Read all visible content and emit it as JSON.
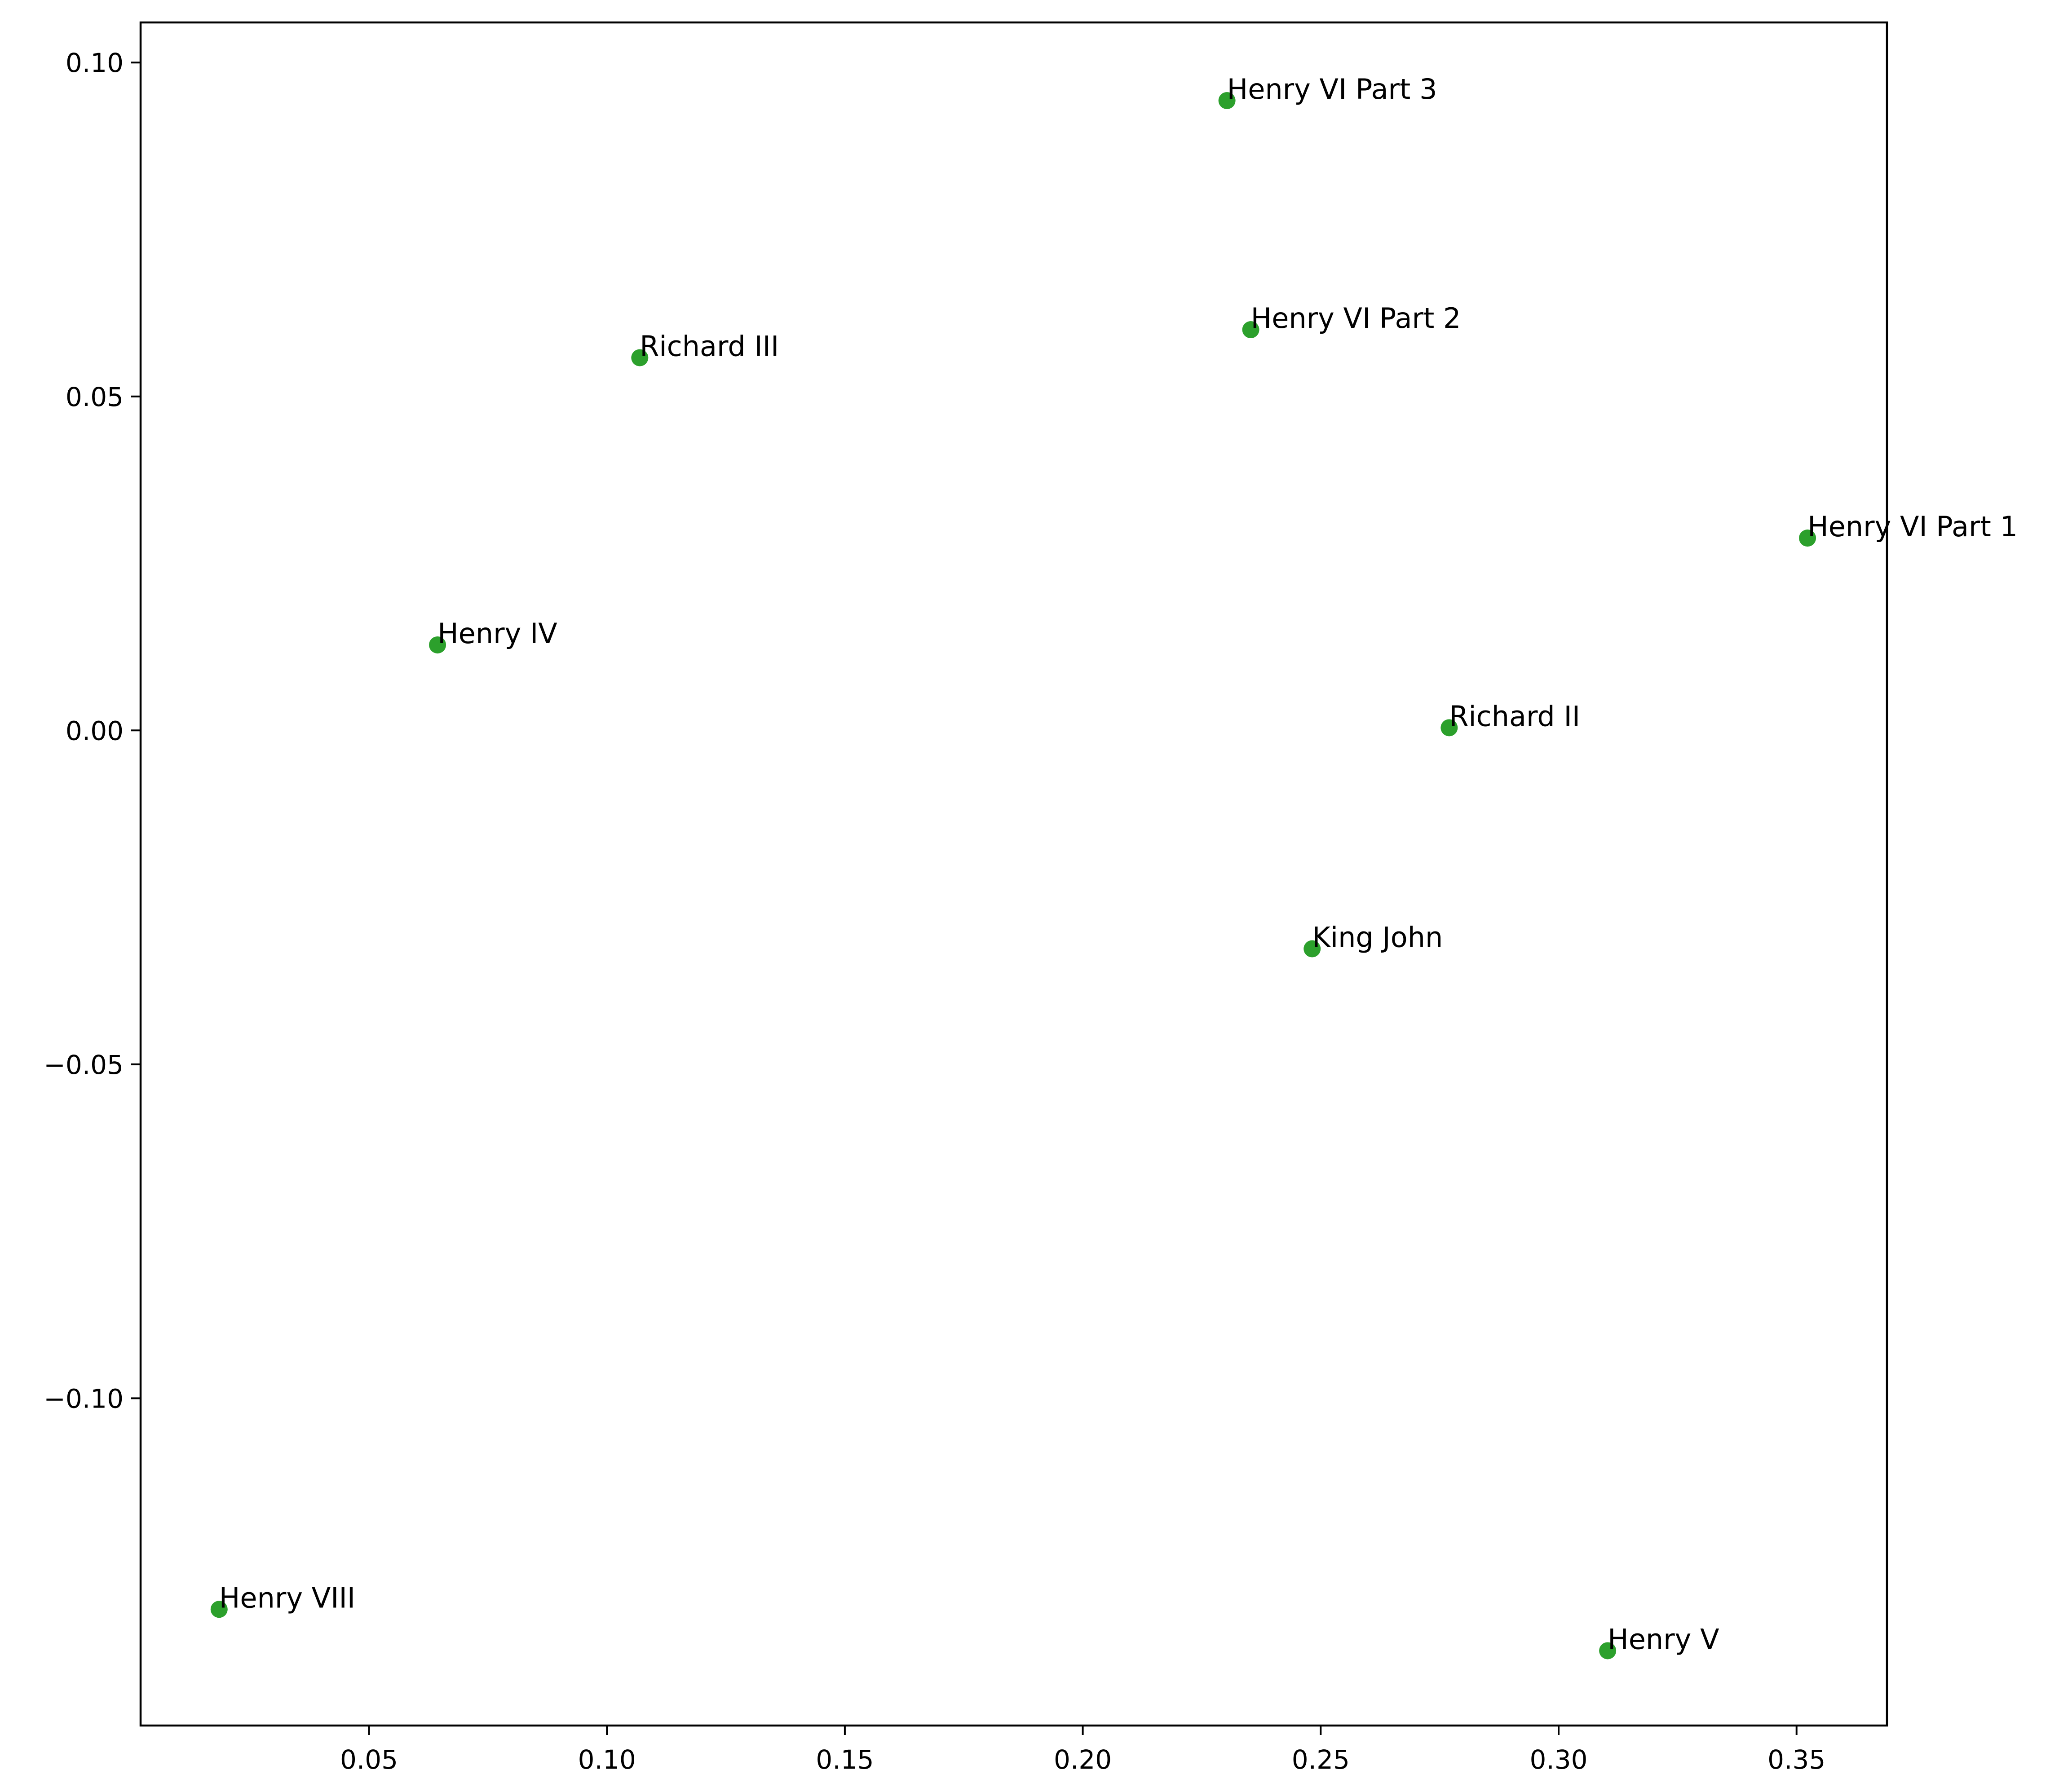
{
  "chart_data": {
    "type": "scatter",
    "title": "",
    "xlabel": "",
    "ylabel": "",
    "xlim": [
      0.002,
      0.369
    ],
    "ylim": [
      -0.149,
      0.106
    ],
    "x_ticks": [
      0.05,
      0.1,
      0.15,
      0.2,
      0.25,
      0.3,
      0.35
    ],
    "x_tick_labels": [
      "0.05",
      "0.10",
      "0.15",
      "0.20",
      "0.25",
      "0.30",
      "0.35"
    ],
    "y_ticks": [
      0.1,
      0.05,
      0.0,
      -0.05,
      -0.1
    ],
    "y_tick_labels": [
      "0.10",
      "0.05",
      "0.00",
      "−0.05",
      "−0.10"
    ],
    "grid": false,
    "marker_color": "#2ca02c",
    "points": [
      {
        "label": "Henry VI Part 3",
        "x": 0.2303,
        "y": 0.0943
      },
      {
        "label": "Henry VI Part 2",
        "x": 0.2353,
        "y": 0.06
      },
      {
        "label": "Richard III",
        "x": 0.1069,
        "y": 0.0558
      },
      {
        "label": "Henry VI Part 1",
        "x": 0.3523,
        "y": 0.0288
      },
      {
        "label": "Henry IV",
        "x": 0.0644,
        "y": 0.0128
      },
      {
        "label": "Richard II",
        "x": 0.277,
        "y": 0.0004
      },
      {
        "label": "King John",
        "x": 0.2482,
        "y": -0.0327
      },
      {
        "label": "Henry VIII",
        "x": 0.0185,
        "y": -0.1316
      },
      {
        "label": "Henry V",
        "x": 0.3103,
        "y": -0.1378
      }
    ]
  }
}
